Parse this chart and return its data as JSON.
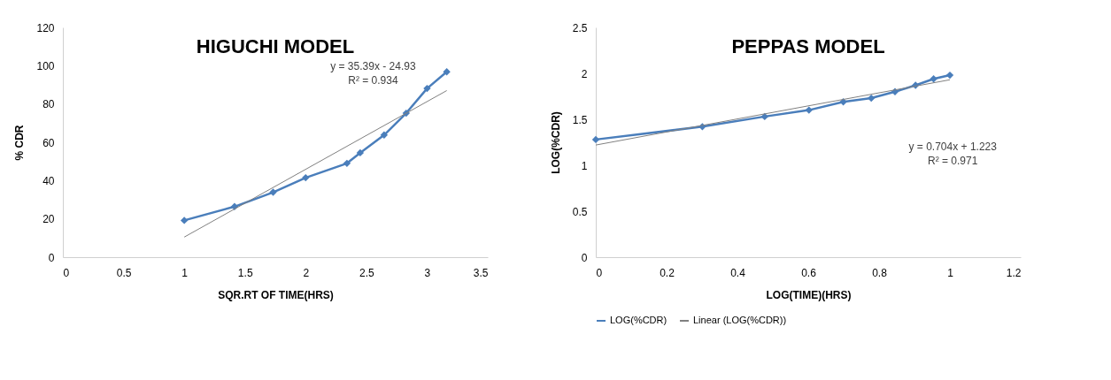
{
  "chart_data": [
    {
      "type": "line",
      "title": "HIGUCHI MODEL",
      "xlabel": "SQR.RT OF TIME(HRS)",
      "ylabel": "% CDR",
      "xlim": [
        0,
        3.5
      ],
      "xticks": [
        0,
        0.5,
        1,
        1.5,
        2,
        2.5,
        3,
        3.5
      ],
      "ylim": [
        0,
        120
      ],
      "yticks": [
        0,
        20,
        40,
        60,
        80,
        100,
        120
      ],
      "grid": false,
      "legend": false,
      "series": [
        {
          "color": "#4a7ebb",
          "marker": "diamond",
          "x": [
            1,
            1.414,
            1.732,
            2,
            2.34,
            2.449,
            2.646,
            2.828,
            3,
            3.162
          ],
          "values": [
            19.2,
            26.4,
            33.9,
            41.5,
            49,
            54.5,
            63.8,
            75.2,
            88.1,
            96.8
          ]
        },
        {
          "color": "#808080",
          "marker": "none",
          "x": [
            1,
            3.162
          ],
          "values": [
            10.5,
            87
          ]
        }
      ],
      "annotations": [
        "y = 35.39x - 24.93",
        "R² = 0.934"
      ]
    },
    {
      "type": "line",
      "title": "PEPPAS MODEL",
      "xlabel": "LOG(TIME)(HRS)",
      "ylabel": "LOG(%CDR)",
      "xlim": [
        0,
        1.2
      ],
      "xticks": [
        0,
        0.2,
        0.4,
        0.6,
        0.8,
        1,
        1.2
      ],
      "ylim": [
        0,
        2.5
      ],
      "yticks": [
        0,
        0.5,
        1,
        1.5,
        2,
        2.5
      ],
      "grid": false,
      "legend": "bottom",
      "series": [
        {
          "name": "LOG(%CDR)",
          "color": "#4a7ebb",
          "marker": "diamond",
          "x": [
            0,
            0.301,
            0.477,
            0.602,
            0.699,
            0.778,
            0.845,
            0.903,
            0.954,
            1
          ],
          "values": [
            1.28,
            1.42,
            1.53,
            1.6,
            1.69,
            1.73,
            1.8,
            1.87,
            1.94,
            1.98
          ]
        },
        {
          "name": "Linear (LOG(%CDR))",
          "color": "#808080",
          "marker": "none",
          "x": [
            0,
            1
          ],
          "values": [
            1.22,
            1.93
          ]
        }
      ],
      "annotations": [
        "y = 0.704x + 1.223",
        "R² = 0.971"
      ]
    }
  ]
}
